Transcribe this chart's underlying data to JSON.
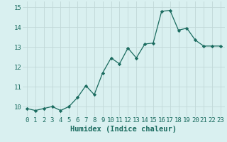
{
  "x": [
    0,
    1,
    2,
    3,
    4,
    5,
    6,
    7,
    8,
    9,
    10,
    11,
    12,
    13,
    14,
    15,
    16,
    17,
    18,
    19,
    20,
    21,
    22,
    23
  ],
  "y": [
    9.9,
    9.8,
    9.9,
    10.0,
    9.8,
    10.0,
    10.45,
    11.05,
    10.6,
    11.7,
    12.45,
    12.15,
    12.95,
    12.45,
    13.15,
    13.2,
    14.8,
    14.85,
    13.85,
    13.95,
    13.35,
    13.05,
    13.05,
    13.05
  ],
  "line_color": "#1a6b5f",
  "marker": "D",
  "marker_size": 2.2,
  "bg_color": "#d9f0f0",
  "grid_color": "#c0d8d8",
  "xlabel": "Humidex (Indice chaleur)",
  "xlim": [
    -0.5,
    23.5
  ],
  "ylim": [
    9.5,
    15.3
  ],
  "yticks": [
    10,
    11,
    12,
    13,
    14,
    15
  ],
  "xticks": [
    0,
    1,
    2,
    3,
    4,
    5,
    6,
    7,
    8,
    9,
    10,
    11,
    12,
    13,
    14,
    15,
    16,
    17,
    18,
    19,
    20,
    21,
    22,
    23
  ],
  "xlabel_fontsize": 7.5,
  "tick_fontsize": 6.5,
  "linewidth": 0.9
}
